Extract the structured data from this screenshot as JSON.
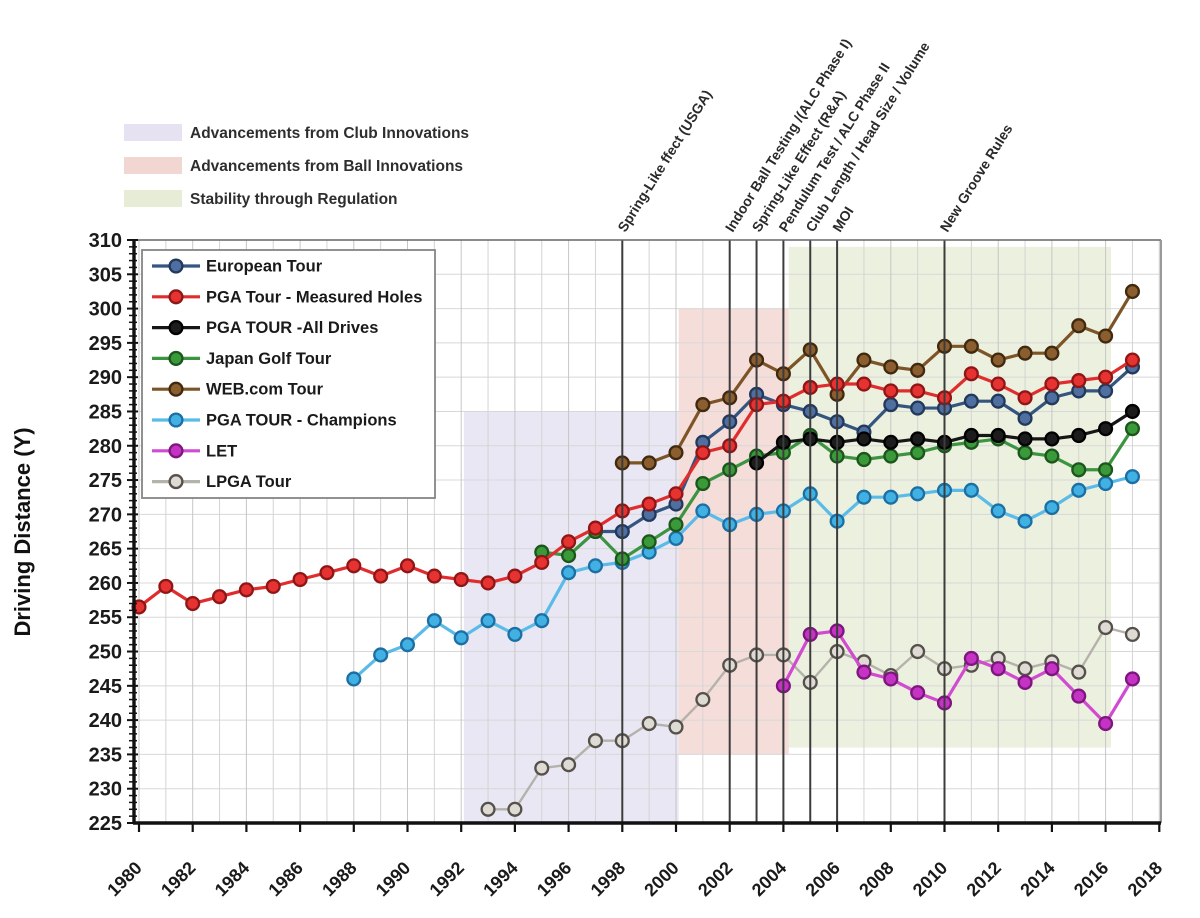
{
  "chart_data": {
    "type": "line",
    "title": "",
    "xlabel": "",
    "ylabel": "Driving Distance (Y)",
    "xlim": [
      1979.8,
      2018.15
    ],
    "ylim": [
      225,
      310
    ],
    "y_tick_step": 5,
    "x_ticks": [
      1980,
      1982,
      1984,
      1986,
      1988,
      1990,
      1992,
      1994,
      1996,
      1998,
      2000,
      2002,
      2004,
      2006,
      2008,
      2010,
      2012,
      2014,
      2016,
      2018
    ],
    "grid": "on",
    "legend_position": "upper-left-inside",
    "region_legend": [
      {
        "label": "Advancements from Club Innovations",
        "color": "#e6e2f1"
      },
      {
        "label": "Advancements from Ball Innovations",
        "color": "#f2d6d2"
      },
      {
        "label": "Stability through Regulation",
        "color": "#e7ecd6"
      }
    ],
    "regions": [
      {
        "name": "club-innovations",
        "x0": 1992.1,
        "x1": 2000.1,
        "y0": 225,
        "y1": 285,
        "color": "#c9c2e2",
        "opacity": 0.4
      },
      {
        "name": "ball-innovations",
        "x0": 2000.1,
        "x1": 2004.2,
        "y0": 235,
        "y1": 300,
        "color": "#e9b3ac",
        "opacity": 0.45
      },
      {
        "name": "regulation",
        "x0": 2004.2,
        "x1": 2016.2,
        "y0": 236,
        "y1": 309,
        "color": "#ccd8a8",
        "opacity": 0.38
      }
    ],
    "events": [
      {
        "year": 1998,
        "label": "Spring-Like ffect (USGA)"
      },
      {
        "year": 2002,
        "label": "Indoor Ball Testing /(ALC Phase I)"
      },
      {
        "year": 2003,
        "label": "Spring-Like Effect (R&A)"
      },
      {
        "year": 2004,
        "label": "Pendulum Test / ALC Phase II"
      },
      {
        "year": 2005,
        "label": "Club Length / Head Size / Volume"
      },
      {
        "year": 2006,
        "label": "MOI"
      },
      {
        "year": 2010,
        "label": "New Groove Rules"
      }
    ],
    "series": [
      {
        "name": "European Tour",
        "start": 1997,
        "line": "#33557f",
        "fill": "#4f6fa0",
        "ring": "#22395c",
        "values": [
          267.5,
          267.5,
          270,
          271.5,
          280.5,
          283.5,
          287.5,
          286,
          285,
          283.5,
          282,
          286,
          285.5,
          285.5,
          286.5,
          286.5,
          284,
          287,
          288,
          288,
          291.5
        ]
      },
      {
        "name": "PGA Tour - Measured Holes",
        "start": 1980,
        "line": "#e02c2c",
        "fill": "#e73232",
        "ring": "#8f1616",
        "values": [
          256.5,
          259.5,
          257,
          258,
          259,
          259.5,
          260.5,
          261.5,
          262.5,
          261,
          262.5,
          261,
          260.5,
          260,
          261,
          263,
          266,
          268,
          270.5,
          271.5,
          273,
          279,
          280,
          286,
          286.5,
          288.5,
          289,
          289,
          288,
          288,
          287,
          290.5,
          289,
          287,
          289,
          289.5,
          290,
          292.5
        ]
      },
      {
        "name": "PGA TOUR -All Drives",
        "start": 2003,
        "line": "#161616",
        "fill": "#1c1c1c",
        "ring": "#000000",
        "values": [
          277.5,
          280.5,
          281,
          280.5,
          281,
          280.5,
          281,
          280.5,
          281.5,
          281.5,
          281,
          281,
          281.5,
          282.5,
          285
        ]
      },
      {
        "name": "Japan Golf Tour",
        "start": 1995,
        "line": "#3c9440",
        "fill": "#3a9a3a",
        "ring": "#1c561c",
        "values": [
          264.5,
          264,
          267.5,
          263.5,
          266,
          268.5,
          274.5,
          276.5,
          278.5,
          279,
          281.5,
          278.5,
          278,
          278.5,
          279,
          280,
          280.5,
          281,
          279,
          278.5,
          276.5,
          276.5,
          282.5
        ]
      },
      {
        "name": "WEB.com Tour",
        "start": 1998,
        "line": "#7d5426",
        "fill": "#8a5e2e",
        "ring": "#40290f",
        "values": [
          277.5,
          277.5,
          279,
          286,
          287,
          292.5,
          290.5,
          294,
          287.5,
          292.5,
          291.5,
          291,
          294.5,
          294.5,
          292.5,
          293.5,
          293.5,
          297.5,
          296,
          302.5
        ]
      },
      {
        "name": "PGA TOUR - Champions",
        "start": 1988,
        "line": "#5bbbe8",
        "fill": "#41b1e3",
        "ring": "#1c6fa3",
        "values": [
          246,
          249.5,
          251,
          254.5,
          252,
          254.5,
          252.5,
          254.5,
          261.5,
          262.5,
          263,
          264.5,
          266.5,
          270.5,
          268.5,
          270,
          270.5,
          273,
          269,
          272.5,
          272.5,
          273,
          273.5,
          273.5,
          270.5,
          269,
          271,
          273.5,
          274.5,
          275.5
        ]
      },
      {
        "name": "LET",
        "start": 2004,
        "line": "#d14ad1",
        "fill": "#c433c4",
        "ring": "#7d167d",
        "values": [
          245,
          252.5,
          253,
          247,
          246,
          244,
          242.5,
          249,
          247.5,
          245.5,
          247.5,
          243.5,
          239.5,
          246
        ]
      },
      {
        "name": "LPGA Tour",
        "start": 1993,
        "line": "#b5b2ac",
        "fill": "#dedbd5",
        "ring": "#55504a",
        "values": [
          227,
          227,
          233,
          233.5,
          237,
          237,
          239.5,
          239,
          243,
          248,
          249.5,
          249.5,
          245.5,
          250,
          248.5,
          246.5,
          250,
          247.5,
          248,
          249,
          247.5,
          248.5,
          247,
          253.5,
          252.5
        ]
      }
    ]
  }
}
